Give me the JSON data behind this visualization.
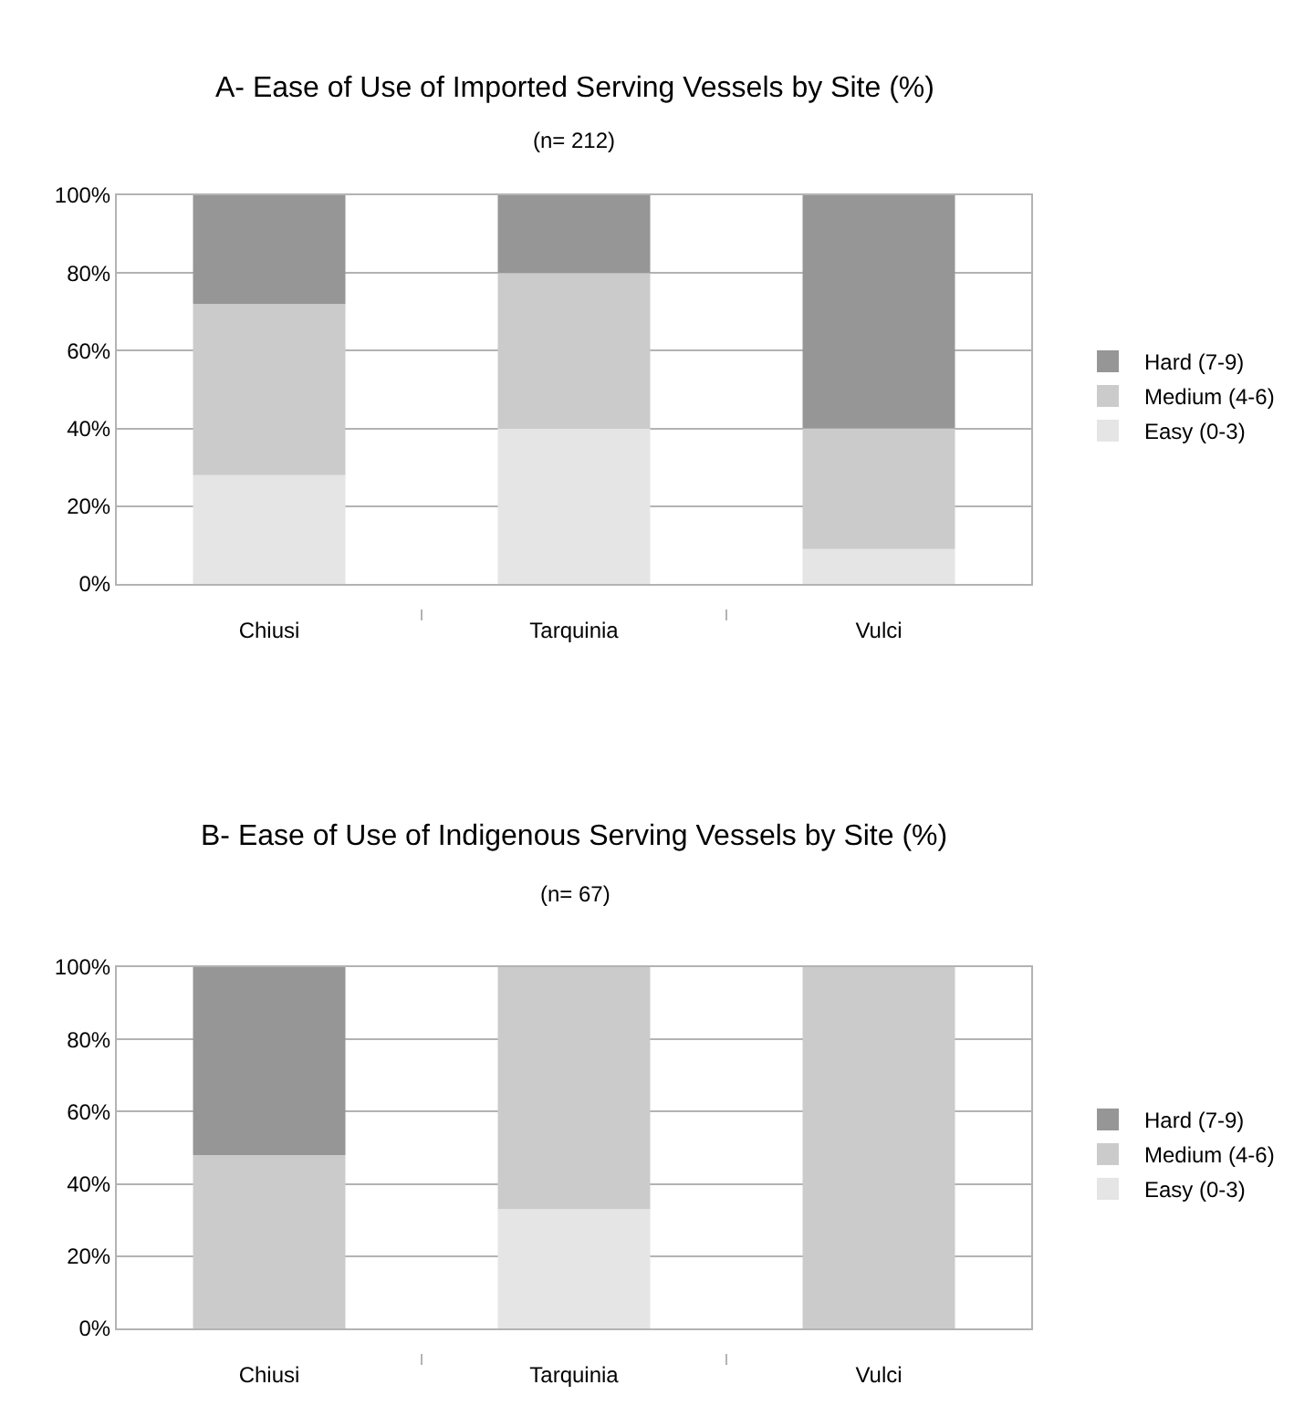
{
  "chart_data": [
    {
      "type": "bar",
      "stacked": true,
      "title": "A- Ease of Use of Imported Serving Vessels by Site (%)",
      "subtitle": "(n= 212)",
      "categories": [
        "Chiusi",
        "Tarquinia",
        "Vulci"
      ],
      "series": [
        {
          "name": "Easy (0-3)",
          "color": "#e5e5e5",
          "values": [
            28,
            40,
            9
          ]
        },
        {
          "name": "Medium (4-6)",
          "color": "#cbcbcb",
          "values": [
            44,
            40,
            31
          ]
        },
        {
          "name": "Hard (7-9)",
          "color": "#969696",
          "values": [
            28,
            20,
            60
          ]
        }
      ],
      "ylim": [
        0,
        100
      ],
      "yticks": [
        {
          "value": 0,
          "label": "0%"
        },
        {
          "value": 20,
          "label": "20%"
        },
        {
          "value": 40,
          "label": "40%"
        },
        {
          "value": 60,
          "label": "60%"
        },
        {
          "value": 80,
          "label": "80%"
        },
        {
          "value": 100,
          "label": "100%"
        }
      ],
      "grid": "y",
      "legend": "right"
    },
    {
      "type": "bar",
      "stacked": true,
      "title": "B- Ease of Use of Indigenous Serving Vessels by Site (%)",
      "subtitle": "(n= 67)",
      "categories": [
        "Chiusi",
        "Tarquinia",
        "Vulci"
      ],
      "series": [
        {
          "name": "Easy (0-3)",
          "color": "#e5e5e5",
          "values": [
            0,
            33,
            0
          ]
        },
        {
          "name": "Medium (4-6)",
          "color": "#cbcbcb",
          "values": [
            48,
            67,
            100
          ]
        },
        {
          "name": "Hard (7-9)",
          "color": "#969696",
          "values": [
            52,
            0,
            0
          ]
        }
      ],
      "ylim": [
        0,
        100
      ],
      "yticks": [
        {
          "value": 0,
          "label": "0%"
        },
        {
          "value": 20,
          "label": "20%"
        },
        {
          "value": 40,
          "label": "40%"
        },
        {
          "value": 60,
          "label": "60%"
        },
        {
          "value": 80,
          "label": "80%"
        },
        {
          "value": 100,
          "label": "100%"
        }
      ],
      "grid": "y",
      "legend": "right"
    }
  ]
}
